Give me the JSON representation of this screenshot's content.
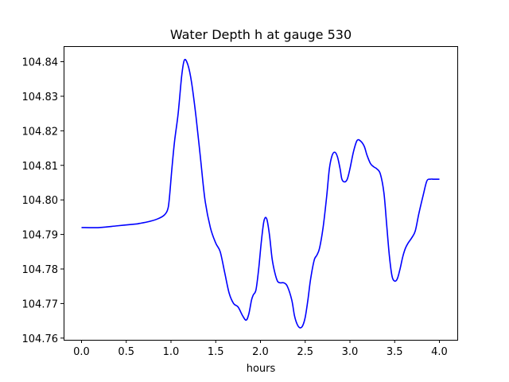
{
  "chart_data": {
    "type": "line",
    "title": "Water Depth h at gauge 530",
    "xlabel": "hours",
    "ylabel": "",
    "xlim": [
      -0.2,
      4.2
    ],
    "ylim": [
      104.7595,
      104.8445
    ],
    "grid": false,
    "x_ticks": [
      0.0,
      0.5,
      1.0,
      1.5,
      2.0,
      2.5,
      3.0,
      3.5,
      4.0
    ],
    "x_tick_labels": [
      "0.0",
      "0.5",
      "1.0",
      "1.5",
      "2.0",
      "2.5",
      "3.0",
      "3.5",
      "4.0"
    ],
    "y_ticks": [
      104.76,
      104.77,
      104.78,
      104.79,
      104.8,
      104.81,
      104.82,
      104.83,
      104.84
    ],
    "y_tick_labels": [
      "104.76",
      "104.77",
      "104.78",
      "104.79",
      "104.80",
      "104.81",
      "104.82",
      "104.83",
      "104.84"
    ],
    "series": [
      {
        "color": "#0000ff",
        "x": [
          0.0,
          0.2,
          0.4,
          0.6,
          0.65,
          0.75,
          0.85,
          0.92,
          0.96,
          0.98,
          1.01,
          1.04,
          1.08,
          1.12,
          1.15,
          1.19,
          1.23,
          1.28,
          1.33,
          1.38,
          1.44,
          1.5,
          1.55,
          1.6,
          1.65,
          1.7,
          1.75,
          1.8,
          1.84,
          1.87,
          1.9,
          1.92,
          1.95,
          1.98,
          2.01,
          2.04,
          2.07,
          2.1,
          2.13,
          2.16,
          2.19,
          2.22,
          2.26,
          2.3,
          2.35,
          2.38,
          2.41,
          2.44,
          2.47,
          2.5,
          2.53,
          2.56,
          2.6,
          2.63,
          2.66,
          2.7,
          2.74,
          2.77,
          2.8,
          2.83,
          2.86,
          2.89,
          2.91,
          2.94,
          2.97,
          3.0,
          3.04,
          3.08,
          3.12,
          3.16,
          3.19,
          3.23,
          3.27,
          3.3,
          3.34,
          3.38,
          3.41,
          3.44,
          3.47,
          3.5,
          3.53,
          3.56,
          3.59,
          3.62,
          3.65,
          3.69,
          3.73,
          3.77,
          3.82,
          3.86,
          3.9,
          3.93,
          3.96,
          4.0
        ],
        "y": [
          104.792,
          104.792,
          104.7925,
          104.793,
          104.7932,
          104.7937,
          104.7945,
          104.7955,
          104.797,
          104.8,
          104.809,
          104.817,
          104.825,
          104.836,
          104.8405,
          104.839,
          104.834,
          104.824,
          104.812,
          104.8,
          104.792,
          104.7875,
          104.785,
          104.779,
          104.773,
          104.77,
          104.769,
          104.7665,
          104.7652,
          104.767,
          104.771,
          104.7725,
          104.774,
          104.78,
          104.788,
          104.794,
          104.7945,
          104.79,
          104.783,
          104.779,
          104.7765,
          104.776,
          104.776,
          104.775,
          104.771,
          104.7665,
          104.764,
          104.763,
          104.7635,
          104.766,
          104.771,
          104.777,
          104.7825,
          104.784,
          104.786,
          104.792,
          104.801,
          104.809,
          104.8128,
          104.8138,
          104.8125,
          104.809,
          104.806,
          104.8052,
          104.806,
          104.809,
          104.814,
          104.8172,
          104.817,
          104.8155,
          104.813,
          104.8105,
          104.8095,
          104.809,
          104.8075,
          104.802,
          104.793,
          104.784,
          104.778,
          104.7765,
          104.7772,
          104.78,
          104.7835,
          104.786,
          104.7875,
          104.789,
          104.791,
          104.796,
          104.8015,
          104.8055,
          104.806,
          104.806,
          104.806,
          104.806
        ]
      }
    ]
  }
}
